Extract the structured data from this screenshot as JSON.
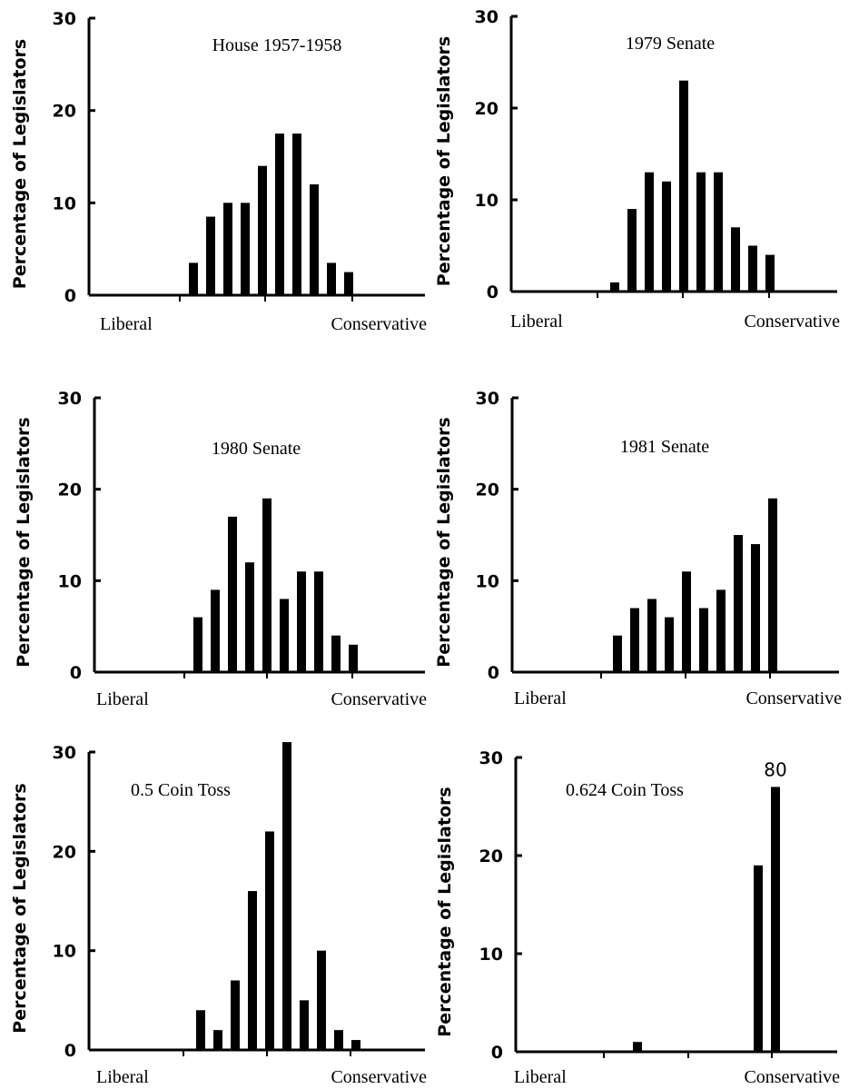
{
  "chart_data": [
    {
      "type": "bar",
      "title": "House 1957-1958",
      "ylabel": "Percentage of Legislators",
      "x_start_label": "Liberal",
      "x_end_label": "Conservative",
      "ylim": [
        0,
        30
      ],
      "yticks": [
        "0",
        "10",
        "20",
        "30"
      ],
      "values": [
        3.5,
        8.5,
        10,
        10,
        14,
        17.5,
        17.5,
        12,
        3.5,
        2.5
      ],
      "bar_annotations": []
    },
    {
      "type": "bar",
      "title": "1979 Senate",
      "ylabel": "Percentage of Legislators",
      "x_start_label": "Liberal",
      "x_end_label": "Conservative",
      "ylim": [
        0,
        30
      ],
      "yticks": [
        "0",
        "10",
        "20",
        "30"
      ],
      "values": [
        1,
        9,
        13,
        12,
        23,
        13,
        13,
        7,
        5,
        4
      ],
      "bar_annotations": []
    },
    {
      "type": "bar",
      "title": "1980 Senate",
      "ylabel": "Percentage of Legislators",
      "x_start_label": "Liberal",
      "x_end_label": "Conservative",
      "ylim": [
        0,
        30
      ],
      "yticks": [
        "0",
        "10",
        "20",
        "30"
      ],
      "values": [
        6,
        9,
        17,
        12,
        19,
        8,
        11,
        11,
        4,
        3
      ],
      "bar_annotations": []
    },
    {
      "type": "bar",
      "title": "1981 Senate",
      "ylabel": "Percentage of Legislators",
      "x_start_label": "Liberal",
      "x_end_label": "Conservative",
      "ylim": [
        0,
        30
      ],
      "yticks": [
        "0",
        "10",
        "20",
        "30"
      ],
      "values": [
        4,
        7,
        8,
        6,
        11,
        7,
        9,
        15,
        14,
        19
      ],
      "bar_annotations": []
    },
    {
      "type": "bar",
      "title": "0.5 Coin Toss",
      "ylabel": "Percentage of Legislators",
      "x_start_label": "Liberal",
      "x_end_label": "Conservative",
      "ylim": [
        0,
        30
      ],
      "yticks": [
        "0",
        "10",
        "20",
        "30"
      ],
      "values": [
        4,
        2,
        7,
        16,
        22,
        31,
        5,
        10,
        2,
        1
      ],
      "bar_annotations": []
    },
    {
      "type": "bar",
      "title": "0.624 Coin Toss",
      "ylabel": "Percentage of Legislators",
      "x_start_label": "Liberal",
      "x_end_label": "Conservative",
      "ylim": [
        0,
        30
      ],
      "yticks": [
        "0",
        "10",
        "20",
        "30"
      ],
      "values": [
        0,
        1,
        0,
        0,
        0,
        0,
        0,
        0,
        19,
        27
      ],
      "bar_annotations": [
        {
          "bar": 9,
          "text": "80"
        }
      ]
    }
  ]
}
